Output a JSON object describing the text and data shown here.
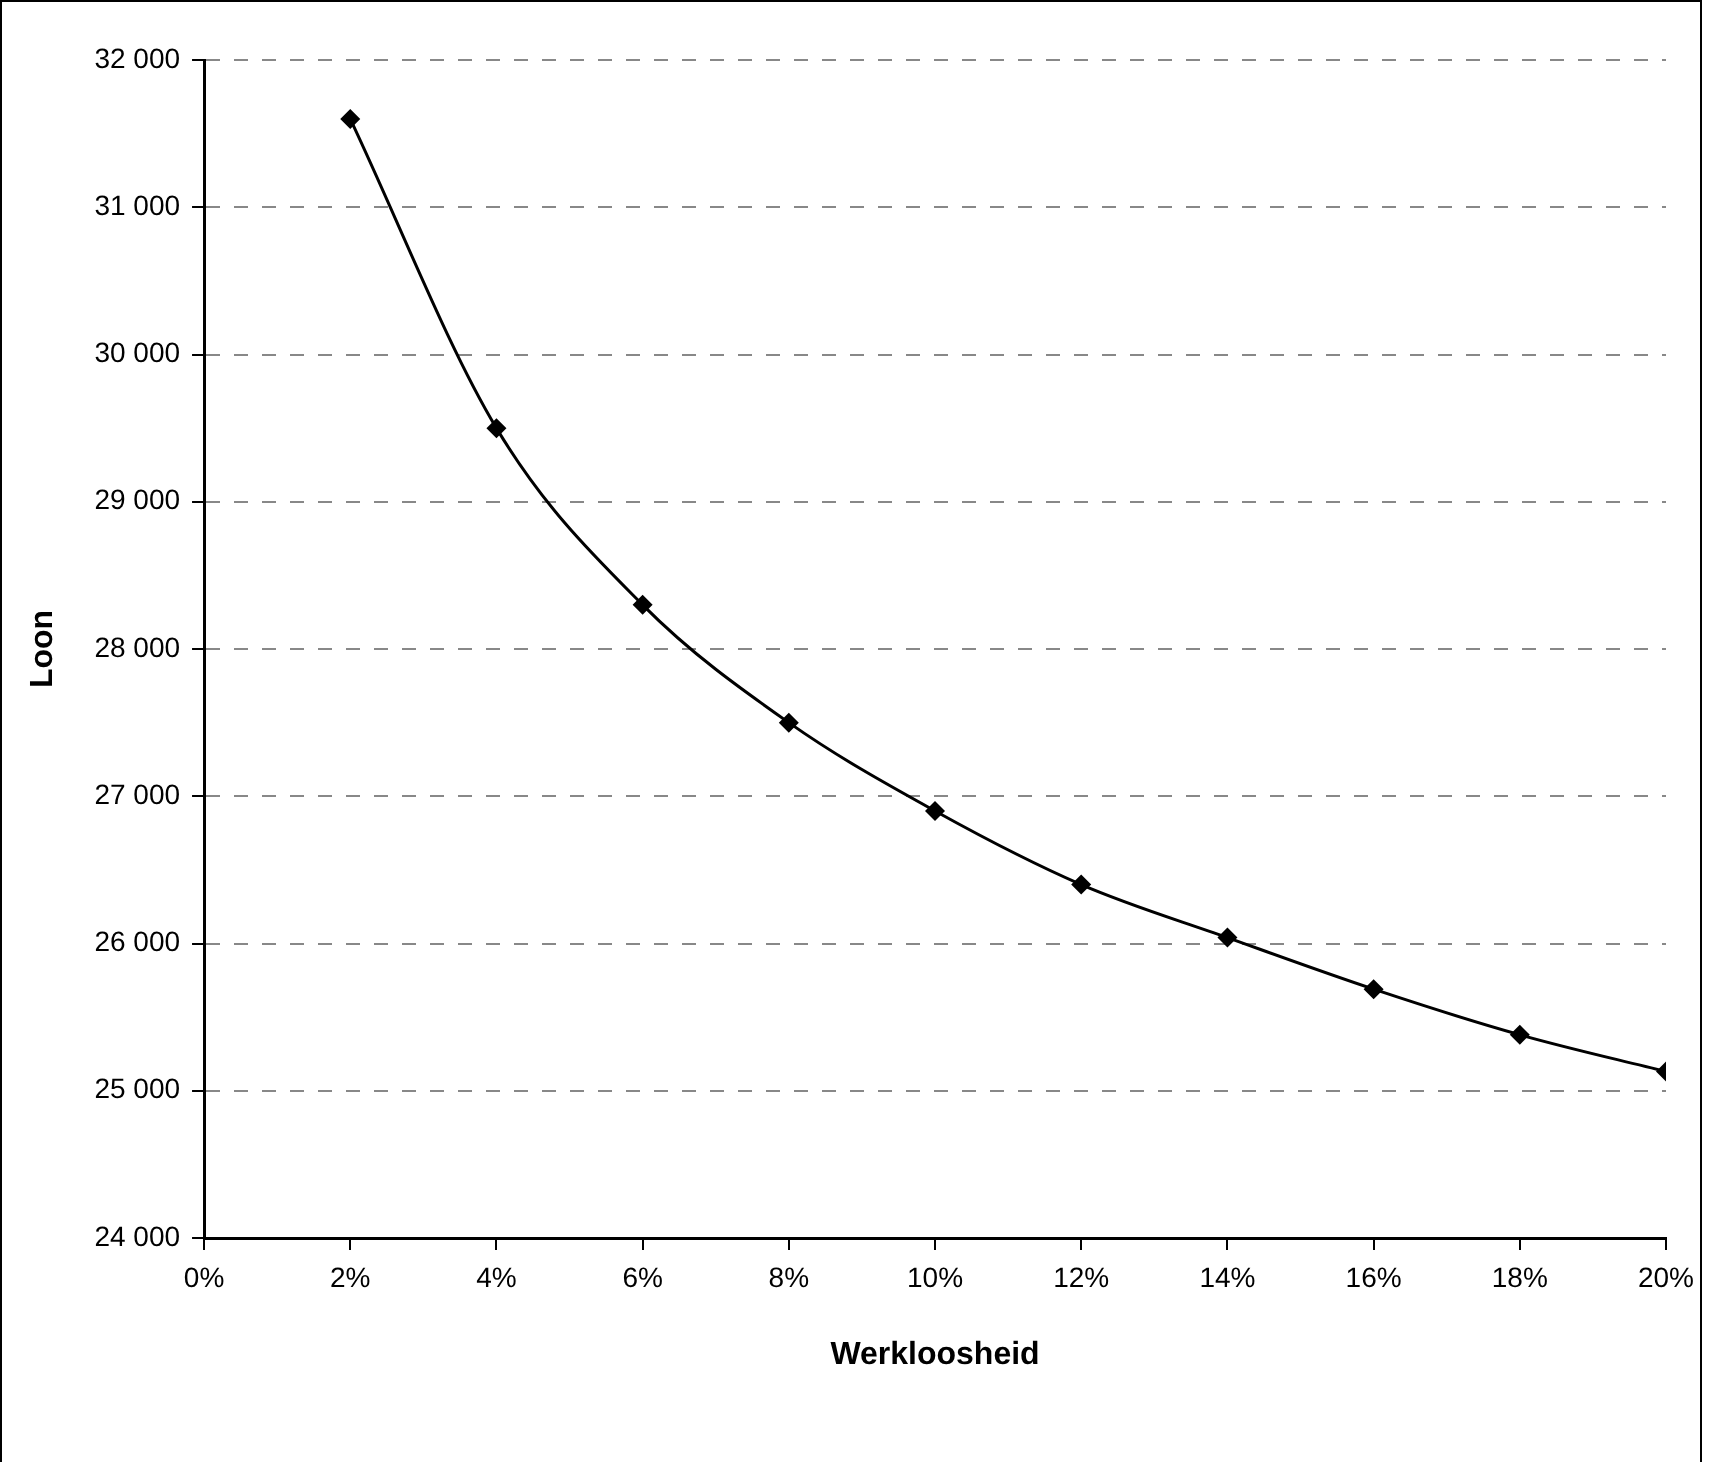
{
  "chart_data": {
    "type": "line",
    "xlabel": "Werkloosheid",
    "ylabel": "Loon",
    "x": [
      2,
      4,
      6,
      8,
      10,
      12,
      14,
      16,
      18,
      20
    ],
    "series": [
      {
        "color": "#000000",
        "values": [
          31600,
          29500,
          28300,
          27500,
          26900,
          26400,
          26040,
          25690,
          25380,
          25130
        ]
      }
    ],
    "xlim": [
      0,
      20
    ],
    "xticks": [
      {
        "value": 0,
        "label": "0%"
      },
      {
        "value": 2,
        "label": "2%"
      },
      {
        "value": 4,
        "label": "4%"
      },
      {
        "value": 6,
        "label": "6%"
      },
      {
        "value": 8,
        "label": "8%"
      },
      {
        "value": 10,
        "label": "10%"
      },
      {
        "value": 12,
        "label": "12%"
      },
      {
        "value": 14,
        "label": "14%"
      },
      {
        "value": 16,
        "label": "16%"
      },
      {
        "value": 18,
        "label": "18%"
      },
      {
        "value": 20,
        "label": "20%"
      }
    ],
    "ylim": [
      24000,
      32000
    ],
    "yticks": [
      {
        "value": 24000,
        "label": "24 000"
      },
      {
        "value": 25000,
        "label": "25 000"
      },
      {
        "value": 26000,
        "label": "26 000"
      },
      {
        "value": 27000,
        "label": "27 000"
      },
      {
        "value": 28000,
        "label": "28 000"
      },
      {
        "value": 29000,
        "label": "29 000"
      },
      {
        "value": 30000,
        "label": "30 000"
      },
      {
        "value": 31000,
        "label": "31 000"
      },
      {
        "value": 32000,
        "label": "32 000"
      }
    ],
    "grid": "y",
    "marker": "diamond",
    "line_style": "solid",
    "legend": false
  }
}
